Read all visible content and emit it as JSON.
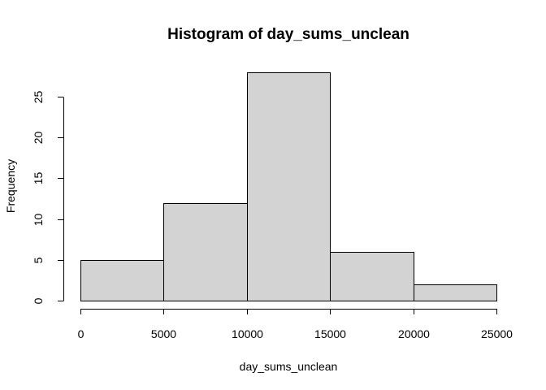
{
  "chart_data": {
    "type": "bar",
    "title": "Histogram of day_sums_unclean",
    "xlabel": "day_sums_unclean",
    "ylabel": "Frequency",
    "bins": [
      {
        "from": 0,
        "to": 5000,
        "count": 5
      },
      {
        "from": 5000,
        "to": 10000,
        "count": 12
      },
      {
        "from": 10000,
        "to": 15000,
        "count": 28
      },
      {
        "from": 15000,
        "to": 20000,
        "count": 6
      },
      {
        "from": 20000,
        "to": 25000,
        "count": 2
      }
    ],
    "xlim": [
      0,
      25000
    ],
    "ylim": [
      0,
      28
    ],
    "x_ticks": [
      0,
      5000,
      10000,
      15000,
      20000,
      25000
    ],
    "y_ticks": [
      0,
      5,
      10,
      15,
      20,
      25
    ],
    "bar_fill": "#d3d3d3",
    "bar_stroke": "#000000",
    "grid": false,
    "legend": "none"
  }
}
